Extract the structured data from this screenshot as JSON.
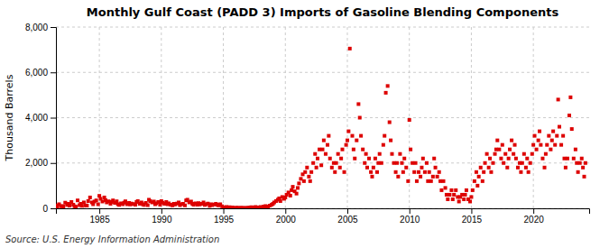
{
  "chart_data": {
    "type": "scatter",
    "title": "Monthly Gulf Coast (PADD 3) Imports of Gasoline Blending Components",
    "ylabel": "Thousand Barrels",
    "source": "Source: U.S. Energy Information Administration",
    "color": "#dd0000",
    "marker": "square",
    "grid": true,
    "xlim": [
      1981.5,
      2024.5
    ],
    "xticks": [
      1985,
      1990,
      1995,
      2000,
      2005,
      2010,
      2015,
      2020
    ],
    "ylim": [
      0,
      8000
    ],
    "yticks": [
      0,
      {
        "value": 2000,
        "label": "2,000"
      },
      {
        "value": 4000,
        "label": "4,000"
      },
      {
        "value": 6000,
        "label": "6,000"
      },
      {
        "value": 8000,
        "label": "8,000"
      }
    ],
    "x": [
      1981.5,
      1981.6,
      1981.75,
      1981.9,
      1982.0,
      1982.1,
      1982.25,
      1982.4,
      1982.5,
      1982.6,
      1982.75,
      1982.9,
      1983.0,
      1983.1,
      1983.25,
      1983.4,
      1983.5,
      1983.6,
      1983.75,
      1983.9,
      1984.0,
      1984.1,
      1984.25,
      1984.4,
      1984.5,
      1984.6,
      1984.75,
      1984.9,
      1985.0,
      1985.1,
      1985.25,
      1985.4,
      1985.5,
      1985.6,
      1985.75,
      1985.9,
      1986.0,
      1986.1,
      1986.25,
      1986.4,
      1986.5,
      1986.6,
      1986.75,
      1986.9,
      1987.0,
      1987.1,
      1987.25,
      1987.4,
      1987.5,
      1987.6,
      1987.75,
      1987.9,
      1988.0,
      1988.1,
      1988.25,
      1988.4,
      1988.5,
      1988.6,
      1988.75,
      1988.9,
      1989.0,
      1989.1,
      1989.25,
      1989.4,
      1989.5,
      1989.6,
      1989.75,
      1989.9,
      1990.0,
      1990.1,
      1990.25,
      1990.4,
      1990.5,
      1990.6,
      1990.75,
      1990.9,
      1991.0,
      1991.1,
      1991.25,
      1991.4,
      1991.5,
      1991.6,
      1991.75,
      1991.9,
      1992.0,
      1992.1,
      1992.25,
      1992.4,
      1992.5,
      1992.6,
      1992.75,
      1992.9,
      1993.0,
      1993.1,
      1993.25,
      1993.4,
      1993.5,
      1993.6,
      1993.75,
      1993.9,
      1994.0,
      1994.1,
      1994.25,
      1994.4,
      1994.5,
      1994.6,
      1994.75,
      1994.9,
      1995.0,
      1995.1,
      1995.25,
      1995.4,
      1995.5,
      1995.6,
      1995.75,
      1995.9,
      1996.0,
      1996.1,
      1996.25,
      1996.4,
      1996.5,
      1996.6,
      1996.75,
      1996.9,
      1997.0,
      1997.1,
      1997.25,
      1997.4,
      1997.5,
      1997.6,
      1997.75,
      1997.9,
      1998.0,
      1998.1,
      1998.25,
      1998.4,
      1998.5,
      1998.6,
      1998.75,
      1998.9,
      1999.0,
      1999.1,
      1999.25,
      1999.4,
      1999.5,
      1999.6,
      1999.75,
      1999.9,
      2000.0,
      2000.1,
      2000.25,
      2000.4,
      2000.5,
      2000.6,
      2000.75,
      2000.9,
      2001.0,
      2001.1,
      2001.25,
      2001.4,
      2001.5,
      2001.6,
      2001.75,
      2001.9,
      2002.0,
      2002.1,
      2002.25,
      2002.4,
      2002.5,
      2002.6,
      2002.75,
      2002.9,
      2003.0,
      2003.1,
      2003.25,
      2003.4,
      2003.5,
      2003.6,
      2003.75,
      2003.9,
      2004.0,
      2004.1,
      2004.25,
      2004.4,
      2004.5,
      2004.6,
      2004.75,
      2004.9,
      2005.0,
      2005.1,
      2005.2,
      2005.4,
      2005.5,
      2005.6,
      2005.75,
      2005.9,
      2006.0,
      2006.1,
      2006.25,
      2006.4,
      2006.5,
      2006.6,
      2006.75,
      2006.9,
      2007.0,
      2007.1,
      2007.25,
      2007.4,
      2007.5,
      2007.6,
      2007.75,
      2007.9,
      2008.0,
      2008.1,
      2008.25,
      2008.4,
      2008.5,
      2008.6,
      2008.75,
      2008.9,
      2009.0,
      2009.1,
      2009.25,
      2009.4,
      2009.5,
      2009.6,
      2009.75,
      2009.9,
      2010.0,
      2010.1,
      2010.25,
      2010.4,
      2010.5,
      2010.6,
      2010.75,
      2010.9,
      2011.0,
      2011.1,
      2011.25,
      2011.4,
      2011.5,
      2011.6,
      2011.75,
      2011.9,
      2012.0,
      2012.1,
      2012.25,
      2012.4,
      2012.5,
      2012.6,
      2012.75,
      2012.9,
      2013.0,
      2013.1,
      2013.25,
      2013.4,
      2013.5,
      2013.6,
      2013.75,
      2013.9,
      2014.0,
      2014.1,
      2014.25,
      2014.4,
      2014.5,
      2014.6,
      2014.75,
      2014.9,
      2015.0,
      2015.1,
      2015.25,
      2015.4,
      2015.5,
      2015.6,
      2015.75,
      2015.9,
      2016.0,
      2016.1,
      2016.25,
      2016.4,
      2016.5,
      2016.6,
      2016.75,
      2016.9,
      2017.0,
      2017.1,
      2017.25,
      2017.4,
      2017.5,
      2017.6,
      2017.75,
      2017.9,
      2018.0,
      2018.1,
      2018.25,
      2018.4,
      2018.5,
      2018.6,
      2018.75,
      2018.9,
      2019.0,
      2019.1,
      2019.25,
      2019.4,
      2019.5,
      2019.6,
      2019.75,
      2019.9,
      2020.0,
      2020.1,
      2020.25,
      2020.4,
      2020.5,
      2020.6,
      2020.75,
      2020.9,
      2021.0,
      2021.1,
      2021.25,
      2021.4,
      2021.5,
      2021.6,
      2021.75,
      2021.9,
      2022.0,
      2022.1,
      2022.25,
      2022.4,
      2022.5,
      2022.6,
      2022.75,
      2022.9,
      2023.0,
      2023.1,
      2023.25,
      2023.4,
      2023.5,
      2023.6,
      2023.75,
      2023.9,
      2024.0,
      2024.1,
      2024.2
    ],
    "values": [
      130,
      60,
      180,
      90,
      100,
      80,
      250,
      150,
      200,
      120,
      280,
      160,
      90,
      70,
      350,
      140,
      200,
      110,
      260,
      130,
      120,
      320,
      480,
      260,
      180,
      300,
      350,
      180,
      550,
      420,
      300,
      480,
      360,
      260,
      310,
      200,
      280,
      350,
      240,
      310,
      180,
      150,
      220,
      180,
      250,
      310,
      180,
      240,
      170,
      210,
      190,
      160,
      280,
      320,
      200,
      260,
      180,
      150,
      240,
      140,
      380,
      320,
      260,
      300,
      180,
      220,
      280,
      160,
      320,
      250,
      200,
      280,
      180,
      220,
      160,
      130,
      200,
      170,
      210,
      260,
      140,
      180,
      200,
      130,
      350,
      380,
      260,
      300,
      200,
      160,
      220,
      160,
      230,
      170,
      200,
      260,
      150,
      180,
      210,
      110,
      180,
      140,
      170,
      200,
      160,
      130,
      180,
      90,
      40,
      20,
      60,
      30,
      50,
      20,
      40,
      15,
      10,
      30,
      15,
      25,
      10,
      20,
      15,
      20,
      15,
      30,
      50,
      40,
      20,
      60,
      30,
      40,
      60,
      40,
      80,
      100,
      60,
      80,
      120,
      160,
      200,
      260,
      320,
      380,
      440,
      320,
      500,
      420,
      480,
      600,
      700,
      560,
      800,
      950,
      750,
      650,
      900,
      1100,
      1300,
      1500,
      1200,
      1600,
      1800,
      1400,
      1200,
      1600,
      2000,
      2400,
      1800,
      2200,
      2600,
      1900,
      2600,
      3000,
      2400,
      2800,
      3200,
      2200,
      1800,
      2000,
      1600,
      2000,
      2400,
      1800,
      2200,
      2600,
      1600,
      2800,
      3000,
      3400,
      7050,
      3200,
      2600,
      2200,
      3000,
      4600,
      4000,
      3200,
      2600,
      2000,
      2400,
      1800,
      2200,
      1600,
      1400,
      1800,
      2200,
      1600,
      2000,
      2400,
      2000,
      2800,
      3200,
      5100,
      5400,
      3800,
      3000,
      2400,
      2000,
      1600,
      2000,
      1400,
      2400,
      2000,
      1600,
      2200,
      1800,
      1200,
      3900,
      2600,
      2000,
      1600,
      2000,
      1200,
      1600,
      1400,
      1800,
      2200,
      1600,
      2000,
      1200,
      1600,
      1200,
      1400,
      2200,
      1800,
      1400,
      1600,
      1200,
      800,
      1200,
      900,
      600,
      400,
      600,
      800,
      400,
      600,
      800,
      500,
      300,
      500,
      600,
      400,
      600,
      800,
      400,
      300,
      500,
      800,
      1200,
      1600,
      1000,
      1400,
      1800,
      1200,
      1600,
      2000,
      2400,
      1800,
      2200,
      1600,
      2000,
      2400,
      2600,
      3000,
      2600,
      2200,
      2800,
      2000,
      2400,
      1800,
      2200,
      2600,
      3000,
      2400,
      2800,
      2200,
      1800,
      2000,
      1600,
      2000,
      2400,
      1800,
      2200,
      1600,
      2000,
      2400,
      2800,
      3200,
      2600,
      3000,
      3400,
      2800,
      2200,
      1800,
      2400,
      2800,
      3200,
      2600,
      3000,
      3400,
      2800,
      3200,
      4800,
      3600,
      2800,
      3200,
      2200,
      1800,
      2200,
      4100,
      4900,
      3500,
      2200,
      2600,
      2000,
      1600,
      2000,
      2200,
      1800,
      1400,
      2000
    ]
  }
}
